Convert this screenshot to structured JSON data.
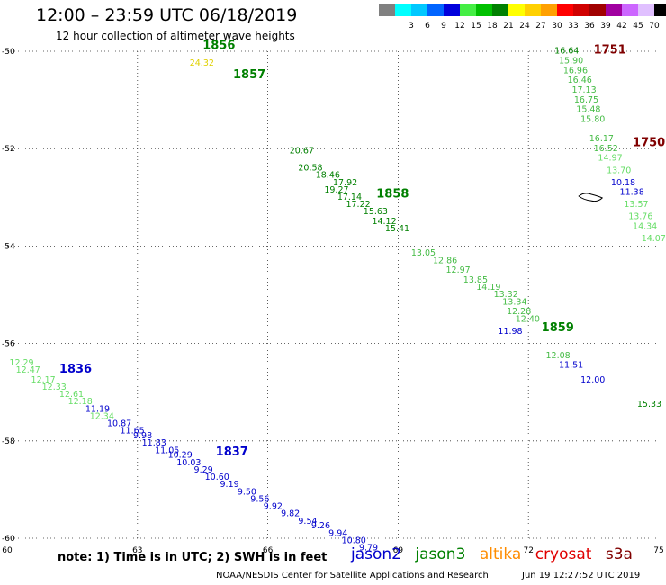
{
  "header": {
    "title": "12:00 – 23:59 UTC 06/18/2019",
    "subtitle": "12 hour collection of altimeter wave heights"
  },
  "legend": {
    "unit": "(ft)",
    "bins": [
      {
        "label": "",
        "color": "#808080"
      },
      {
        "label": "3",
        "color": "#00ffff"
      },
      {
        "label": "6",
        "color": "#00c8ff"
      },
      {
        "label": "9",
        "color": "#0064ff"
      },
      {
        "label": "12",
        "color": "#0000dc"
      },
      {
        "label": "15",
        "color": "#44ee44"
      },
      {
        "label": "18",
        "color": "#00c000"
      },
      {
        "label": "21",
        "color": "#008000"
      },
      {
        "label": "24",
        "color": "#ffff00"
      },
      {
        "label": "27",
        "color": "#ffd000"
      },
      {
        "label": "30",
        "color": "#ffa000"
      },
      {
        "label": "33",
        "color": "#ff0000"
      },
      {
        "label": "36",
        "color": "#d00000"
      },
      {
        "label": "39",
        "color": "#a00000"
      },
      {
        "label": "42",
        "color": "#a000a0"
      },
      {
        "label": "45",
        "color": "#cc66ff"
      },
      {
        "label": "70",
        "color": "#e0c0ff"
      },
      {
        "label": "",
        "color": "#000000"
      }
    ]
  },
  "map": {
    "lon_range": [
      60,
      75
    ],
    "lat_range": [
      -60,
      -50
    ],
    "lon_ticks": [
      "60",
      "63",
      "66",
      "69",
      "72",
      "75"
    ],
    "lat_ticks": [
      "-50",
      "-52",
      "-54",
      "-56",
      "-58",
      "-60"
    ],
    "grid": "dotted"
  },
  "passes": [
    {
      "label": "1856",
      "color": "#008000",
      "lon": 64.5,
      "lat": -49.95
    },
    {
      "label": "1857",
      "color": "#008000",
      "lon": 65.2,
      "lat": -50.55
    },
    {
      "label": "1858",
      "color": "#008000",
      "lon": 68.5,
      "lat": -53.0
    },
    {
      "label": "1859",
      "color": "#008000",
      "lon": 72.3,
      "lat": -55.75
    },
    {
      "label": "1751",
      "color": "#800000",
      "lon": 73.5,
      "lat": -50.05
    },
    {
      "label": "1750",
      "color": "#800000",
      "lon": 74.4,
      "lat": -51.95
    },
    {
      "label": "1836",
      "color": "#0000cc",
      "lon": 61.2,
      "lat": -56.6
    },
    {
      "label": "1837",
      "color": "#0000cc",
      "lon": 64.8,
      "lat": -58.3
    }
  ],
  "observations": [
    {
      "v": "24.32",
      "lon": 64.2,
      "lat": -50.3,
      "c": "#e0d000"
    },
    {
      "v": "20.67",
      "lon": 66.5,
      "lat": -52.1,
      "c": "#008000"
    },
    {
      "v": "20.58",
      "lon": 66.7,
      "lat": -52.45,
      "c": "#008000"
    },
    {
      "v": "18.46",
      "lon": 67.1,
      "lat": -52.6,
      "c": "#008000"
    },
    {
      "v": "17.92",
      "lon": 67.5,
      "lat": -52.75,
      "c": "#008000"
    },
    {
      "v": "19.27",
      "lon": 67.3,
      "lat": -52.9,
      "c": "#008000"
    },
    {
      "v": "17.14",
      "lon": 67.6,
      "lat": -53.05,
      "c": "#008000"
    },
    {
      "v": "17.22",
      "lon": 67.8,
      "lat": -53.2,
      "c": "#008000"
    },
    {
      "v": "15.63",
      "lon": 68.2,
      "lat": -53.35,
      "c": "#008000"
    },
    {
      "v": "14.12",
      "lon": 68.4,
      "lat": -53.55,
      "c": "#008000"
    },
    {
      "v": "15.41",
      "lon": 68.7,
      "lat": -53.7,
      "c": "#008000"
    },
    {
      "v": "13.05",
      "lon": 69.3,
      "lat": -54.2,
      "c": "#44bb44"
    },
    {
      "v": "12.86",
      "lon": 69.8,
      "lat": -54.35,
      "c": "#44bb44"
    },
    {
      "v": "12.97",
      "lon": 70.1,
      "lat": -54.55,
      "c": "#44bb44"
    },
    {
      "v": "13.85",
      "lon": 70.5,
      "lat": -54.75,
      "c": "#44bb44"
    },
    {
      "v": "14.19",
      "lon": 70.8,
      "lat": -54.9,
      "c": "#44bb44"
    },
    {
      "v": "13.32",
      "lon": 71.2,
      "lat": -55.05,
      "c": "#44bb44"
    },
    {
      "v": "13.34",
      "lon": 71.4,
      "lat": -55.2,
      "c": "#44bb44"
    },
    {
      "v": "12.28",
      "lon": 71.5,
      "lat": -55.4,
      "c": "#44bb44"
    },
    {
      "v": "12.40",
      "lon": 71.7,
      "lat": -55.55,
      "c": "#44bb44"
    },
    {
      "v": "11.98",
      "lon": 71.3,
      "lat": -55.8,
      "c": "#0000cc"
    },
    {
      "v": "12.08",
      "lon": 72.4,
      "lat": -56.3,
      "c": "#44bb44"
    },
    {
      "v": "11.51",
      "lon": 72.7,
      "lat": -56.5,
      "c": "#0000cc"
    },
    {
      "v": "12.00",
      "lon": 73.2,
      "lat": -56.8,
      "c": "#0000cc"
    },
    {
      "v": "15.33",
      "lon": 74.5,
      "lat": -57.3,
      "c": "#008000"
    },
    {
      "v": "16.64",
      "lon": 72.6,
      "lat": -50.05,
      "c": "#008000"
    },
    {
      "v": "15.90",
      "lon": 72.7,
      "lat": -50.25,
      "c": "#44bb44"
    },
    {
      "v": "16.96",
      "lon": 72.8,
      "lat": -50.45,
      "c": "#44bb44"
    },
    {
      "v": "16.46",
      "lon": 72.9,
      "lat": -50.65,
      "c": "#44bb44"
    },
    {
      "v": "17.13",
      "lon": 73.0,
      "lat": -50.85,
      "c": "#44bb44"
    },
    {
      "v": "16.75",
      "lon": 73.05,
      "lat": -51.05,
      "c": "#44bb44"
    },
    {
      "v": "15.48",
      "lon": 73.1,
      "lat": -51.25,
      "c": "#44bb44"
    },
    {
      "v": "15.80",
      "lon": 73.2,
      "lat": -51.45,
      "c": "#44bb44"
    },
    {
      "v": "16.17",
      "lon": 73.4,
      "lat": -51.85,
      "c": "#44bb44"
    },
    {
      "v": "16.52",
      "lon": 73.5,
      "lat": -52.05,
      "c": "#44bb44"
    },
    {
      "v": "14.97",
      "lon": 73.6,
      "lat": -52.25,
      "c": "#66dd66"
    },
    {
      "v": "13.70",
      "lon": 73.8,
      "lat": -52.5,
      "c": "#66dd66"
    },
    {
      "v": "10.18",
      "lon": 73.9,
      "lat": -52.75,
      "c": "#0000cc"
    },
    {
      "v": "11.38",
      "lon": 74.1,
      "lat": -52.95,
      "c": "#0000cc"
    },
    {
      "v": "13.57",
      "lon": 74.2,
      "lat": -53.2,
      "c": "#66dd66"
    },
    {
      "v": "13.76",
      "lon": 74.3,
      "lat": -53.45,
      "c": "#66dd66"
    },
    {
      "v": "14.34",
      "lon": 74.4,
      "lat": -53.65,
      "c": "#66dd66"
    },
    {
      "v": "14.07",
      "lon": 74.6,
      "lat": -53.9,
      "c": "#66dd66"
    },
    {
      "v": "12.29",
      "lon": 60.05,
      "lat": -56.45,
      "c": "#66dd66"
    },
    {
      "v": "12.47",
      "lon": 60.2,
      "lat": -56.6,
      "c": "#66dd66"
    },
    {
      "v": "12.17",
      "lon": 60.55,
      "lat": -56.8,
      "c": "#66dd66"
    },
    {
      "v": "12.33",
      "lon": 60.8,
      "lat": -56.95,
      "c": "#66dd66"
    },
    {
      "v": "12.61",
      "lon": 61.2,
      "lat": -57.1,
      "c": "#66dd66"
    },
    {
      "v": "12.18",
      "lon": 61.4,
      "lat": -57.25,
      "c": "#66dd66"
    },
    {
      "v": "11.19",
      "lon": 61.8,
      "lat": -57.4,
      "c": "#0000cc"
    },
    {
      "v": "12.34",
      "lon": 61.9,
      "lat": -57.55,
      "c": "#66dd66"
    },
    {
      "v": "10.87",
      "lon": 62.3,
      "lat": -57.7,
      "c": "#0000cc"
    },
    {
      "v": "11.65",
      "lon": 62.6,
      "lat": -57.85,
      "c": "#0000cc"
    },
    {
      "v": "9.98",
      "lon": 62.9,
      "lat": -57.95,
      "c": "#0000cc"
    },
    {
      "v": "11.83",
      "lon": 63.1,
      "lat": -58.1,
      "c": "#0000cc"
    },
    {
      "v": "11.05",
      "lon": 63.4,
      "lat": -58.25,
      "c": "#0000cc"
    },
    {
      "v": "10.29",
      "lon": 63.7,
      "lat": -58.35,
      "c": "#0000cc"
    },
    {
      "v": "10.03",
      "lon": 63.9,
      "lat": -58.5,
      "c": "#0000cc"
    },
    {
      "v": "9.29",
      "lon": 64.3,
      "lat": -58.65,
      "c": "#0000cc"
    },
    {
      "v": "10.60",
      "lon": 64.55,
      "lat": -58.8,
      "c": "#0000cc"
    },
    {
      "v": "9.19",
      "lon": 64.9,
      "lat": -58.95,
      "c": "#0000cc"
    },
    {
      "v": "9.50",
      "lon": 65.3,
      "lat": -59.1,
      "c": "#0000cc"
    },
    {
      "v": "9.56",
      "lon": 65.6,
      "lat": -59.25,
      "c": "#0000cc"
    },
    {
      "v": "9.92",
      "lon": 65.9,
      "lat": -59.4,
      "c": "#0000cc"
    },
    {
      "v": "9.82",
      "lon": 66.3,
      "lat": -59.55,
      "c": "#0000cc"
    },
    {
      "v": "9.54",
      "lon": 66.7,
      "lat": -59.7,
      "c": "#0000cc"
    },
    {
      "v": "9.26",
      "lon": 67.0,
      "lat": -59.8,
      "c": "#0000cc"
    },
    {
      "v": "9.94",
      "lon": 67.4,
      "lat": -59.95,
      "c": "#0000cc"
    },
    {
      "v": "10.80",
      "lon": 67.7,
      "lat": -60.1,
      "c": "#0000cc"
    },
    {
      "v": "9.79",
      "lon": 68.1,
      "lat": -60.25,
      "c": "#0000cc"
    }
  ],
  "footer": {
    "note": "note: 1) Time is in UTC; 2) SWH is in feet",
    "satellites": [
      {
        "name": "jason2",
        "color": "#0000cc"
      },
      {
        "name": "jason3",
        "color": "#008000"
      },
      {
        "name": "altika",
        "color": "#ff8c00"
      },
      {
        "name": "cryosat",
        "color": "#e00000"
      },
      {
        "name": "s3a",
        "color": "#800000"
      }
    ],
    "credit": "NOAA/NESDIS Center for Satellite Applications and Research",
    "timestamp": "Jun 19 12:27:52 UTC 2019"
  }
}
